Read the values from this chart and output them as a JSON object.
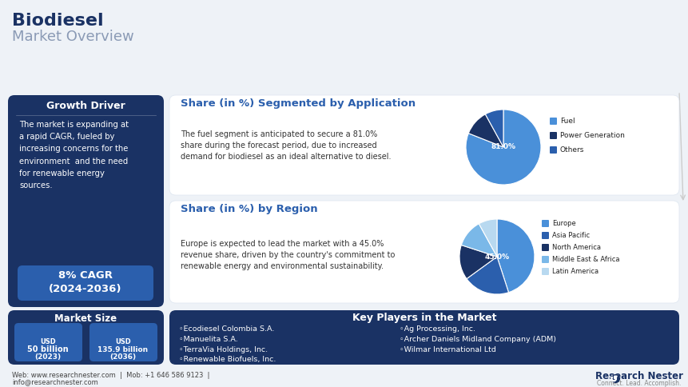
{
  "title_main": "Biodiesel",
  "title_sub": "Market Overview",
  "bg_color": "#eef2f7",
  "dark_blue": "#1a3264",
  "medium_blue": "#2b5fad",
  "light_blue": "#4a90d9",
  "lighter_blue": "#7ab8e8",
  "lightest_blue": "#b8d9f0",
  "white": "#ffffff",
  "panel_bg": "#f7f9fc",
  "growth_driver_title": "Growth Driver",
  "growth_driver_text": "The market is expanding at\na rapid CAGR, fueled by\nincreasing concerns for the\nenvironment  and the need\nfor renewable energy\nsources.",
  "cagr_text": "8% CAGR\n(2024-2036)",
  "app_title": "Share (in %) Segmented by Application",
  "app_desc": "The fuel segment is anticipated to secure a 81.0%\nshare during the forecast period, due to increased\ndemand for biodiesel as an ideal alternative to diesel.",
  "app_slices": [
    81.0,
    11.0,
    8.0
  ],
  "app_colors": [
    "#4a90d9",
    "#1a3264",
    "#2b5fad"
  ],
  "app_labels": [
    "Fuel",
    "Power Generation",
    "Others"
  ],
  "app_center_label": "81.0%",
  "region_title": "Share (in %) by Region",
  "region_desc": "Europe is expected to lead the market with a 45.0%\nrevenue share, driven by the country's commitment to\nrenewable energy and environmental sustainability.",
  "region_slices": [
    45.0,
    20.0,
    15.0,
    12.0,
    8.0
  ],
  "region_colors": [
    "#4a90d9",
    "#2b5fad",
    "#1a3264",
    "#7ab8e8",
    "#b8d9f0"
  ],
  "region_labels": [
    "Europe",
    "Asia Pacific",
    "North America",
    "Middle East & Africa",
    "Latin America"
  ],
  "region_center_label": "45.0%",
  "market_size_title": "Market Size",
  "market_size_1_line1": "USD",
  "market_size_1_line2": "50 billion",
  "market_size_1_line3": "(2023)",
  "market_size_2_line1": "USD",
  "market_size_2_line2": "135.9 billion",
  "market_size_2_line3": "(2036)",
  "key_players_title": "Key Players in the Market",
  "key_players_left": [
    "Ecodiesel Colombia S.A.",
    "Manuelita S.A.",
    "TerraVia Holdings, Inc.",
    "Renewable Biofuels, Inc."
  ],
  "key_players_right": [
    "Ag Processing, Inc.",
    "Archer Daniels Midland Company (ADM)",
    "Wilmar International Ltd"
  ],
  "footer_web": "Web: www.researchnester.com  |  Mob: +1 646 586 9123  |",
  "footer_email": "info@researchnester.com",
  "footer_brand": "Research Nester",
  "footer_tagline": "Connect. Lead. Accomplish."
}
